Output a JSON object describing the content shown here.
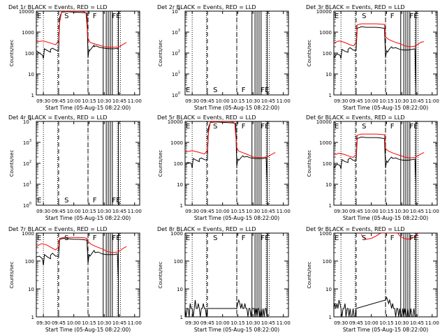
{
  "common": {
    "xlabel": "Start Time (05-Aug-15 08:22:00)",
    "ylabel": "Counts/sec",
    "x_ticks": [
      "09:30",
      "09:45",
      "10:00",
      "10:15",
      "10:30",
      "10:45",
      "11:00"
    ],
    "y_ticks_log": [
      "1",
      "10",
      "100",
      "1000",
      "10000"
    ],
    "y_ticks_exp": [
      "10^0",
      "10^1",
      "10^2",
      "10^3",
      "10^4"
    ],
    "colors": {
      "events": "#000000",
      "lld": "#ff0000"
    }
  },
  "chart_data": [
    {
      "type": "line",
      "title": "Det 1r BLACK = Events, RED = LLD",
      "ytick_style": "log",
      "ylim": [
        1,
        10000
      ],
      "markers": [
        "E",
        "S",
        "F",
        "FE"
      ],
      "series": [
        {
          "name": "Events",
          "color": "#000000",
          "x": [
            "09:23",
            "09:26",
            "09:29",
            "09:30",
            "09:31",
            "09:34",
            "09:37",
            "09:37",
            "09:39",
            "09:42",
            "09:45",
            "09:46",
            "09:48",
            "09:54",
            "10:00",
            "10:06",
            "10:10",
            "10:13",
            "10:14",
            "10:15",
            "10:15",
            "10:17",
            "10:20",
            "10:20",
            "10:22",
            "10:25",
            "10:30",
            "10:35",
            "10:40",
            "10:43",
            "10:44"
          ],
          "y": [
            130,
            100,
            80,
            55,
            160,
            130,
            110,
            150,
            170,
            140,
            120,
            5000,
            9000,
            9500,
            9000,
            8800,
            8500,
            8000,
            60,
            150,
            120,
            160,
            240,
            200,
            220,
            190,
            170,
            160,
            160,
            170,
            160
          ]
        },
        {
          "name": "LLD",
          "color": "#ff0000",
          "x": [
            "09:23",
            "09:30",
            "09:37",
            "09:42",
            "09:45",
            "09:46",
            "09:48",
            "09:54",
            "10:00",
            "10:06",
            "10:10",
            "10:12",
            "10:14",
            "10:16",
            "10:20",
            "10:25",
            "10:30",
            "10:35",
            "10:40",
            "10:45",
            "10:48",
            "10:52"
          ],
          "y": [
            350,
            380,
            300,
            250,
            380,
            3000,
            9500,
            9800,
            9800,
            9800,
            9500,
            8000,
            500,
            320,
            280,
            240,
            200,
            190,
            190,
            200,
            250,
            320
          ]
        }
      ]
    },
    {
      "type": "line",
      "title": "Det 2r BLACK = Events, RED = LLD",
      "ytick_style": "exp",
      "ylim": [
        1,
        10000
      ],
      "markers": [
        "E",
        "S",
        "F",
        "FE"
      ],
      "series": []
    },
    {
      "type": "line",
      "title": "Det 3r BLACK = Events, RED = LLD",
      "ytick_style": "log",
      "ylim": [
        1,
        10000
      ],
      "markers": [
        "E",
        "S",
        "F",
        "FE"
      ],
      "series": [
        {
          "name": "Events",
          "color": "#000000",
          "x": [
            "09:23",
            "09:26",
            "09:29",
            "09:30",
            "09:31",
            "09:34",
            "09:37",
            "09:37",
            "09:39",
            "09:42",
            "09:45",
            "09:46",
            "09:50",
            "09:55",
            "10:00",
            "10:05",
            "10:10",
            "10:13",
            "10:14",
            "10:15",
            "10:16",
            "10:18",
            "10:20",
            "10:21",
            "10:24",
            "10:28",
            "10:32",
            "10:36",
            "10:40",
            "10:43",
            "10:44"
          ],
          "y": [
            60,
            90,
            80,
            55,
            150,
            120,
            110,
            150,
            180,
            140,
            130,
            1500,
            1800,
            1700,
            1700,
            1700,
            1600,
            1500,
            60,
            130,
            110,
            160,
            200,
            170,
            180,
            150,
            140,
            140,
            150,
            160,
            2
          ]
        },
        {
          "name": "LLD",
          "color": "#ff0000",
          "x": [
            "09:23",
            "09:28",
            "09:33",
            "09:38",
            "09:42",
            "09:45",
            "09:46",
            "09:50",
            "09:55",
            "10:00",
            "10:05",
            "10:10",
            "10:13",
            "10:14",
            "10:17",
            "10:22",
            "10:28",
            "10:33",
            "10:38",
            "10:43",
            "10:46",
            "10:49",
            "10:52"
          ],
          "y": [
            300,
            380,
            330,
            260,
            220,
            300,
            2200,
            2500,
            2500,
            2500,
            2500,
            2400,
            2300,
            600,
            450,
            350,
            280,
            220,
            200,
            210,
            260,
            330,
            350
          ]
        }
      ]
    },
    {
      "type": "line",
      "title": "Det 4r BLACK = Events, RED = LLD",
      "ytick_style": "exp",
      "ylim": [
        1,
        10000
      ],
      "markers": [
        "E",
        "S",
        "F",
        "FE"
      ],
      "series": []
    },
    {
      "type": "line",
      "title": "Det 5r BLACK = Events, RED = LLD",
      "ytick_style": "log",
      "ylim": [
        1,
        10000
      ],
      "markers": [
        "E",
        "S",
        "F",
        "FE"
      ],
      "series": [
        {
          "name": "Events",
          "color": "#000000",
          "x": [
            "09:23",
            "09:26",
            "09:29",
            "09:30",
            "09:31",
            "09:34",
            "09:37",
            "09:37",
            "09:39",
            "09:42",
            "09:45",
            "09:46",
            "09:48",
            "09:54",
            "10:00",
            "10:06",
            "10:10",
            "10:13",
            "10:14",
            "10:15",
            "10:16",
            "10:18",
            "10:20",
            "10:21",
            "10:24",
            "10:28",
            "10:32",
            "10:36",
            "10:40",
            "10:43",
            "10:44"
          ],
          "y": [
            100,
            110,
            100,
            60,
            170,
            140,
            120,
            160,
            180,
            150,
            140,
            5000,
            9000,
            9500,
            9000,
            8800,
            8500,
            8000,
            70,
            160,
            140,
            180,
            230,
            200,
            210,
            180,
            170,
            170,
            170,
            180,
            12
          ]
        },
        {
          "name": "LLD",
          "color": "#ff0000",
          "x": [
            "09:23",
            "09:30",
            "09:37",
            "09:42",
            "09:45",
            "09:46",
            "09:48",
            "09:54",
            "10:00",
            "10:06",
            "10:10",
            "10:12",
            "10:14",
            "10:16",
            "10:20",
            "10:25",
            "10:30",
            "10:35",
            "10:40",
            "10:45",
            "10:48",
            "10:52"
          ],
          "y": [
            350,
            400,
            330,
            280,
            400,
            3000,
            9500,
            9800,
            9800,
            9800,
            9500,
            8000,
            550,
            380,
            320,
            260,
            200,
            190,
            190,
            210,
            260,
            330
          ]
        }
      ]
    },
    {
      "type": "line",
      "title": "Det 6r BLACK = Events, RED = LLD",
      "ytick_style": "log",
      "ylim": [
        1,
        10000
      ],
      "markers": [
        "E",
        "S",
        "F",
        "FE"
      ],
      "series": [
        {
          "name": "Events",
          "color": "#000000",
          "x": [
            "09:23",
            "09:26",
            "09:29",
            "09:30",
            "09:31",
            "09:34",
            "09:37",
            "09:37",
            "09:39",
            "09:42",
            "09:45",
            "09:46",
            "09:50",
            "09:55",
            "10:00",
            "10:05",
            "10:10",
            "10:13",
            "10:14",
            "10:15",
            "10:16",
            "10:18",
            "10:20",
            "10:21",
            "10:24",
            "10:28",
            "10:32",
            "10:36",
            "10:40",
            "10:43",
            "10:44"
          ],
          "y": [
            60,
            90,
            80,
            55,
            150,
            120,
            110,
            150,
            180,
            140,
            130,
            1500,
            1800,
            1700,
            1700,
            1700,
            1600,
            1500,
            60,
            130,
            110,
            160,
            200,
            170,
            180,
            150,
            140,
            140,
            150,
            160,
            12
          ]
        },
        {
          "name": "LLD",
          "color": "#ff0000",
          "x": [
            "09:23",
            "09:28",
            "09:33",
            "09:38",
            "09:42",
            "09:45",
            "09:46",
            "09:50",
            "09:55",
            "10:00",
            "10:05",
            "10:10",
            "10:13",
            "10:14",
            "10:17",
            "10:22",
            "10:28",
            "10:33",
            "10:38",
            "10:43",
            "10:46",
            "10:49",
            "10:52"
          ],
          "y": [
            250,
            300,
            270,
            220,
            190,
            260,
            2200,
            2500,
            2500,
            2500,
            2500,
            2400,
            2300,
            500,
            380,
            300,
            240,
            200,
            180,
            190,
            230,
            280,
            330
          ]
        }
      ]
    },
    {
      "type": "line",
      "title": "Det 7r BLACK = Events, RED = LLD",
      "ytick_style": "log",
      "ylim": [
        1,
        1000
      ],
      "markers": [
        "E",
        "S",
        "F",
        "FE"
      ],
      "series": [
        {
          "name": "Events",
          "color": "#000000",
          "x": [
            "09:23",
            "09:26",
            "09:29",
            "09:30",
            "09:31",
            "09:34",
            "09:37",
            "09:37",
            "09:39",
            "09:42",
            "09:45",
            "09:46",
            "09:50",
            "09:55",
            "10:00",
            "10:05",
            "10:10",
            "10:13",
            "10:14",
            "10:15",
            "10:16",
            "10:18",
            "10:20",
            "10:21",
            "10:24",
            "10:28",
            "10:32",
            "10:36",
            "10:40",
            "10:43",
            "10:44"
          ],
          "y": [
            140,
            150,
            120,
            70,
            170,
            140,
            120,
            160,
            190,
            150,
            150,
            600,
            650,
            620,
            600,
            600,
            580,
            560,
            80,
            170,
            150,
            190,
            240,
            200,
            210,
            180,
            170,
            170,
            170,
            180,
            22
          ]
        },
        {
          "name": "LLD",
          "color": "#ff0000",
          "x": [
            "09:23",
            "09:28",
            "09:33",
            "09:38",
            "09:42",
            "09:45",
            "09:46",
            "09:50",
            "09:55",
            "10:00",
            "10:05",
            "10:10",
            "10:13",
            "10:14",
            "10:17",
            "10:22",
            "10:28",
            "10:33",
            "10:38",
            "10:43",
            "10:46",
            "10:49",
            "10:52"
          ],
          "y": [
            330,
            420,
            380,
            300,
            250,
            320,
            650,
            700,
            700,
            700,
            700,
            680,
            650,
            500,
            400,
            330,
            270,
            220,
            200,
            210,
            240,
            290,
            330
          ]
        }
      ]
    },
    {
      "type": "line",
      "title": "Det 8r BLACK = Events, RED = LLD",
      "ytick_style": "log",
      "ylim": [
        1,
        1000
      ],
      "markers": [
        "E",
        "S",
        "F",
        "FE"
      ],
      "series": [
        {
          "name": "Events",
          "color": "#000000",
          "x": [
            "09:23",
            "09:24",
            "09:25",
            "09:26",
            "09:27",
            "09:28",
            "09:29",
            "09:30",
            "09:31",
            "09:32",
            "09:33",
            "09:34",
            "09:35",
            "09:36",
            "09:37",
            "09:38",
            "09:39",
            "09:40",
            "09:41",
            "09:42",
            "09:43",
            "09:44",
            "09:45",
            "10:14",
            "10:15",
            "10:16",
            "10:17",
            "10:18",
            "10:19",
            "10:20",
            "10:21",
            "10:22",
            "10:23",
            "10:24",
            "10:25",
            "10:26",
            "10:27",
            "10:28",
            "10:29",
            "10:30",
            "10:31",
            "10:32",
            "10:33",
            "10:34",
            "10:35",
            "10:36",
            "10:37",
            "10:38",
            "10:39",
            "10:40",
            "10:41",
            "10:42",
            "10:43",
            "10:44"
          ],
          "y": [
            2,
            1,
            2,
            2,
            1,
            3,
            2,
            2,
            1,
            2,
            4,
            2,
            2,
            3,
            2,
            1,
            2,
            2,
            3,
            2,
            2,
            1,
            2,
            2,
            3,
            4,
            3,
            2,
            3,
            2,
            2,
            3,
            2,
            2,
            1,
            2,
            2,
            1,
            2,
            2,
            2,
            1,
            2,
            1,
            2,
            2,
            1,
            2,
            1,
            2,
            1,
            2,
            2,
            1
          ]
        }
      ]
    },
    {
      "type": "line",
      "title": "Det 9r BLACK = Events, RED = LLD",
      "ytick_style": "log",
      "ylim": [
        1,
        1000
      ],
      "markers": [
        "E",
        "S",
        "F",
        "FE"
      ],
      "series": [
        {
          "name": "Events",
          "color": "#000000",
          "x": [
            "09:23",
            "09:24",
            "09:25",
            "09:26",
            "09:27",
            "09:28",
            "09:29",
            "09:30",
            "09:31",
            "09:32",
            "09:33",
            "09:34",
            "09:35",
            "09:36",
            "09:37",
            "09:38",
            "09:39",
            "09:40",
            "09:41",
            "09:42",
            "09:43",
            "09:44",
            "09:45",
            "10:14",
            "10:15",
            "10:16",
            "10:17",
            "10:18",
            "10:19",
            "10:20",
            "10:21",
            "10:22",
            "10:23",
            "10:24",
            "10:25",
            "10:26",
            "10:27",
            "10:28",
            "10:29",
            "10:30",
            "10:31",
            "10:32",
            "10:33",
            "10:34",
            "10:35",
            "10:36",
            "10:37",
            "10:38",
            "10:39",
            "10:40",
            "10:41",
            "10:42",
            "10:43",
            "10:44"
          ],
          "y": [
            2,
            3,
            2,
            3,
            2,
            4,
            3,
            2,
            1,
            2,
            2,
            3,
            1,
            2,
            2,
            1,
            2,
            1,
            1,
            2,
            1,
            1,
            2,
            4,
            5,
            4,
            3,
            4,
            3,
            2,
            3,
            2,
            2,
            1,
            2,
            2,
            1,
            2,
            1,
            1,
            2,
            1,
            2,
            1,
            1,
            2,
            1,
            1,
            2,
            1,
            1,
            2,
            1,
            1
          ]
        },
        {
          "name": "LLD",
          "color": "#ff0000",
          "x": [
            "09:50",
            "09:52",
            "09:55",
            "10:00",
            "10:05",
            "10:08",
            "10:10",
            "10:26",
            "10:28",
            "10:32",
            "10:36",
            "10:40",
            "10:44",
            "10:46"
          ],
          "y": [
            900,
            700,
            600,
            650,
            800,
            950,
            1000,
            1000,
            800,
            650,
            600,
            650,
            800,
            1000
          ]
        }
      ]
    }
  ]
}
